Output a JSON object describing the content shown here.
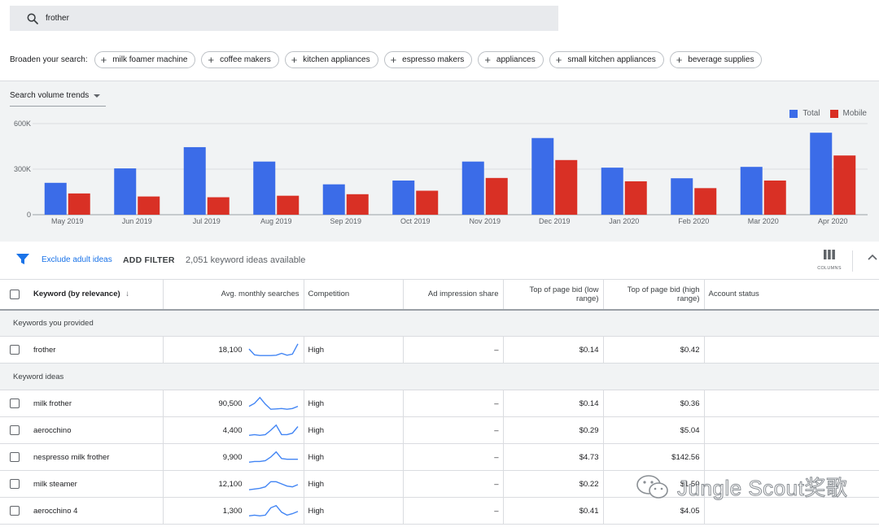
{
  "search": {
    "query": "frother",
    "icon": "search-icon"
  },
  "broaden": {
    "label": "Broaden your search:",
    "chips": [
      "milk foamer machine",
      "coffee makers",
      "kitchen appliances",
      "espresso makers",
      "appliances",
      "small kitchen appliances",
      "beverage supplies"
    ]
  },
  "trends": {
    "selector_label": "Search volume trends",
    "legend": {
      "total": "Total",
      "mobile": "Mobile"
    }
  },
  "colors": {
    "total": "#3b6ce8",
    "mobile": "#d93025",
    "link": "#1a73e8"
  },
  "chart_data": {
    "type": "bar",
    "categories": [
      "May 2019",
      "Jun 2019",
      "Jul 2019",
      "Aug 2019",
      "Sep 2019",
      "Oct 2019",
      "Nov 2019",
      "Dec 2019",
      "Jan 2020",
      "Feb 2020",
      "Mar 2020",
      "Apr 2020"
    ],
    "series": [
      {
        "name": "Total",
        "values": [
          210000,
          305000,
          445000,
          350000,
          200000,
          225000,
          350000,
          505000,
          310000,
          240000,
          315000,
          540000
        ]
      },
      {
        "name": "Mobile",
        "values": [
          140000,
          120000,
          115000,
          125000,
          135000,
          158000,
          242000,
          360000,
          220000,
          175000,
          225000,
          390000
        ]
      }
    ],
    "yticks": [
      "0",
      "300K",
      "600K"
    ],
    "ylim": [
      0,
      600000
    ],
    "grid": true,
    "legend": "top-right"
  },
  "filters": {
    "exclude_label": "Exclude adult ideas",
    "add_filter_label": "ADD FILTER",
    "count_text": "2,051 keyword ideas available",
    "columns_label": "COLUMNS"
  },
  "table": {
    "headers": {
      "keyword": "Keyword (by relevance)",
      "avg": "Avg. monthly searches",
      "competition": "Competition",
      "ad_share": "Ad impression share",
      "bid_low": "Top of page bid (low range)",
      "bid_high": "Top of page bid (high range)",
      "status": "Account status"
    },
    "group_provided": "Keywords you provided",
    "group_ideas": "Keyword ideas",
    "provided": [
      {
        "keyword": "frother",
        "avg": "18,100",
        "competition": "High",
        "ad_share": "–",
        "bid_low": "$0.14",
        "bid_high": "$0.42",
        "trend": [
          0.55,
          0.15,
          0.1,
          0.1,
          0.1,
          0.12,
          0.25,
          0.12,
          0.2,
          0.9
        ]
      }
    ],
    "ideas": [
      {
        "keyword": "milk frother",
        "avg": "90,500",
        "competition": "High",
        "ad_share": "–",
        "bid_low": "$0.14",
        "bid_high": "$0.36",
        "trend": [
          0.3,
          0.5,
          0.9,
          0.45,
          0.1,
          0.12,
          0.15,
          0.1,
          0.15,
          0.3
        ]
      },
      {
        "keyword": "aerocchino",
        "avg": "4,400",
        "competition": "High",
        "ad_share": "–",
        "bid_low": "$0.29",
        "bid_high": "$5.04",
        "trend": [
          0.15,
          0.2,
          0.15,
          0.2,
          0.5,
          0.85,
          0.2,
          0.2,
          0.3,
          0.75
        ]
      },
      {
        "keyword": "nespresso milk frother",
        "avg": "9,900",
        "competition": "High",
        "ad_share": "–",
        "bid_low": "$4.73",
        "bid_high": "$142.56",
        "trend": [
          0.15,
          0.2,
          0.2,
          0.25,
          0.5,
          0.85,
          0.4,
          0.35,
          0.35,
          0.35
        ]
      },
      {
        "keyword": "milk steamer",
        "avg": "12,100",
        "competition": "High",
        "ad_share": "–",
        "bid_low": "$0.22",
        "bid_high": "$1.50",
        "trend": [
          0.1,
          0.15,
          0.2,
          0.3,
          0.65,
          0.65,
          0.5,
          0.35,
          0.3,
          0.45
        ]
      },
      {
        "keyword": "aerocchino 4",
        "avg": "1,300",
        "competition": "High",
        "ad_share": "–",
        "bid_low": "$0.41",
        "bid_high": "$4.05",
        "trend": [
          0.15,
          0.2,
          0.15,
          0.2,
          0.7,
          0.85,
          0.4,
          0.2,
          0.3,
          0.45
        ]
      }
    ]
  },
  "watermark": {
    "text": "Jungle Scout奖歌"
  }
}
